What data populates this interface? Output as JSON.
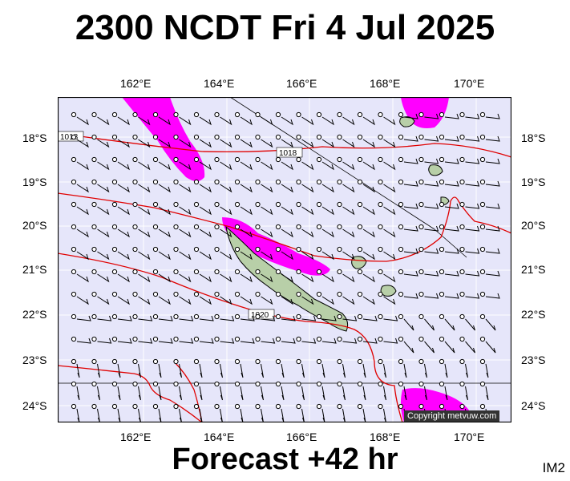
{
  "header": {
    "title": "2300 NCDT Fri 4 Jul 2025"
  },
  "footer": {
    "forecast": "Forecast +42 hr",
    "code": "IM2"
  },
  "axes": {
    "lon_ticks": [
      "162°E",
      "164°E",
      "166°E",
      "168°E",
      "170°E"
    ],
    "lat_ticks": [
      "18°S",
      "19°S",
      "20°S",
      "21°S",
      "22°S",
      "23°S",
      "24°S"
    ]
  },
  "isobars": {
    "labels": [
      "1018",
      "1018",
      "1020"
    ]
  },
  "credit": {
    "text": "Copyright metvuw.com"
  },
  "colors": {
    "map_background": "#e6e6fa",
    "rain": "#ff00ff",
    "isobar": "#e00000",
    "land": "#b8cfa8",
    "frame": "#000000"
  }
}
